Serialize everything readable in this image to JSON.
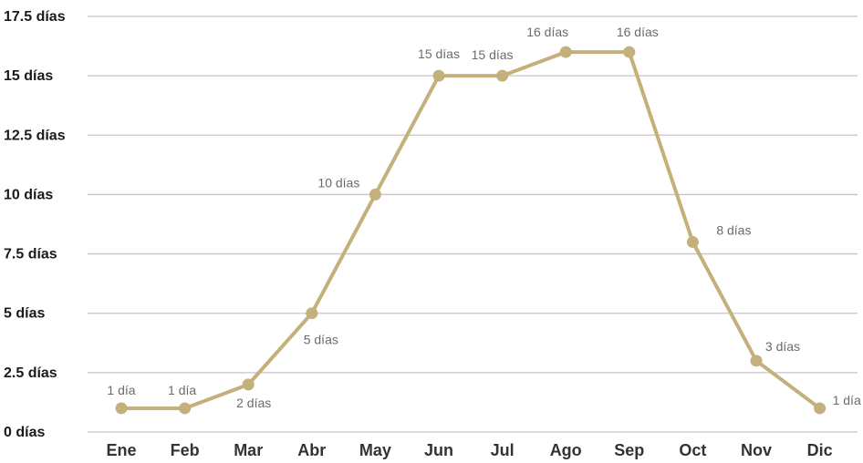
{
  "chart_data": {
    "type": "line",
    "title": "",
    "xlabel": "",
    "ylabel": "",
    "categories": [
      "Ene",
      "Feb",
      "Mar",
      "Abr",
      "May",
      "Jun",
      "Jul",
      "Ago",
      "Sep",
      "Oct",
      "Nov",
      "Dic"
    ],
    "series": [
      {
        "values": [
          1,
          1,
          2,
          5,
          10,
          15,
          15,
          16,
          16,
          8,
          3,
          1
        ],
        "data_labels": [
          "1 día",
          "1 día",
          "2 días",
          "5 días",
          "10 días",
          "15 días",
          "15 días",
          "16 días",
          "16 días",
          "8 días",
          "3 días",
          "1 día"
        ]
      }
    ],
    "ylim": [
      0,
      17.5
    ],
    "yticks": [
      0,
      2.5,
      5,
      7.5,
      10,
      12.5,
      15,
      17.5
    ],
    "ytick_labels": [
      "0 días",
      "2.5 días",
      "5 días",
      "7.5 días",
      "10 días",
      "12.5 días",
      "15 días",
      "17.5 días"
    ],
    "grid": true,
    "legend": "none",
    "colors": {
      "line": "#c4b07a",
      "grid": "#c9c3c7"
    }
  }
}
